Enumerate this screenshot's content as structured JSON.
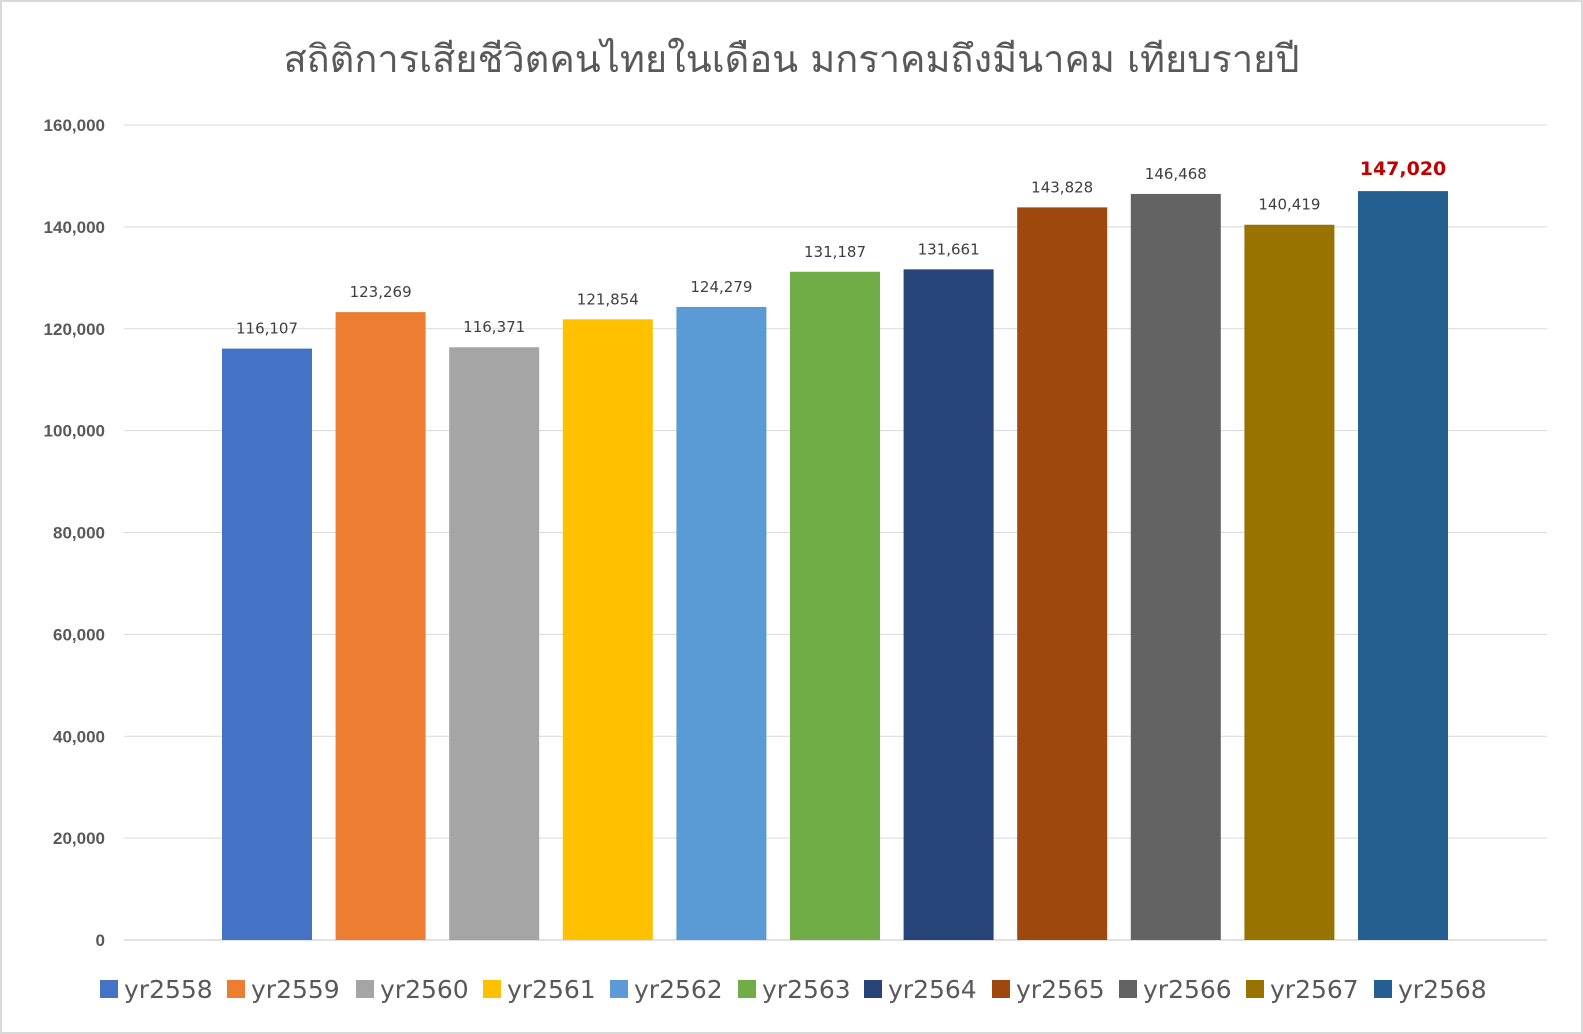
{
  "chart_data": {
    "type": "bar",
    "title": "สถิติการเสียชีวิตคนไทยในเดือน มกราคมถึงมีนาคม เทียบรายปี",
    "categories": [
      "yr2558",
      "yr2559",
      "yr2560",
      "yr2561",
      "yr2562",
      "yr2563",
      "yr2564",
      "yr2565",
      "yr2566",
      "yr2567",
      "yr2568"
    ],
    "values": [
      116107,
      123269,
      116371,
      121854,
      124279,
      131187,
      131661,
      143828,
      146468,
      140419,
      147020
    ],
    "value_labels": [
      "116,107",
      "123,269",
      "116,371",
      "121,854",
      "124,279",
      "131,187",
      "131,661",
      "143,828",
      "146,468",
      "140,419",
      "147,020"
    ],
    "highlighted_index": 10,
    "highlight_label_color": "#c00000",
    "colors": [
      "#4472c4",
      "#ed7d31",
      "#a5a5a5",
      "#ffc000",
      "#5b9bd5",
      "#70ad47",
      "#264478",
      "#9e480e",
      "#636363",
      "#997300",
      "#255e91"
    ],
    "ylim": [
      0,
      160000
    ],
    "yticks": [
      0,
      20000,
      40000,
      60000,
      80000,
      100000,
      120000,
      140000,
      160000
    ],
    "ytick_labels": [
      "0",
      "20,000",
      "40,000",
      "60,000",
      "80,000",
      "100,000",
      "120,000",
      "140,000",
      "160,000"
    ],
    "grid": true,
    "legend_position": "bottom",
    "xlabel": "",
    "ylabel": ""
  }
}
